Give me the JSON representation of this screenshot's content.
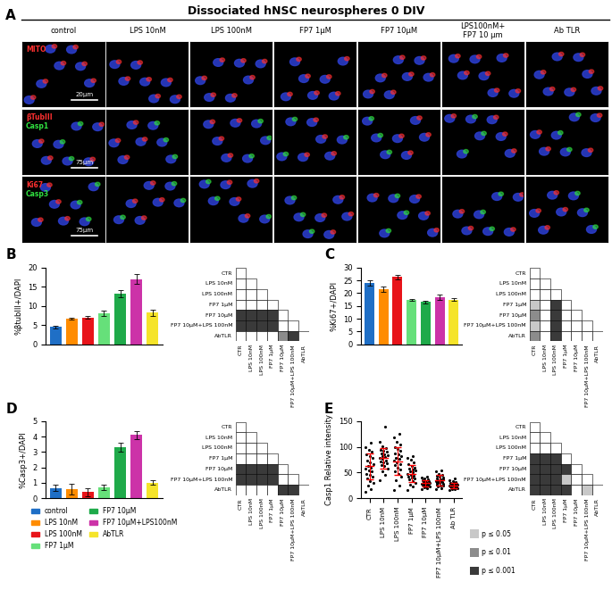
{
  "title": "Dissociated hNSC neurospheres 0 DIV",
  "panel_A": {
    "label": "A",
    "columns": [
      "control",
      "LPS 10nM",
      "LPS 100nM",
      "FP7 1µM",
      "FP7 10µM",
      "LPS100nM+\nFP7 10 µm",
      "Ab TLR"
    ],
    "rows": [
      {
        "stains": [
          {
            "text": "MITO",
            "color": "#ff3030"
          }
        ],
        "scale_bar": "20µm"
      },
      {
        "stains": [
          {
            "text": "βTubIII",
            "color": "#ff3030"
          },
          {
            "text": "Casp1",
            "color": "#30e040"
          }
        ],
        "scale_bar": "75µm"
      },
      {
        "stains": [
          {
            "text": "Ki67",
            "color": "#ff3030"
          },
          {
            "text": "Casp3",
            "color": "#30e040"
          }
        ],
        "scale_bar": "75µm"
      }
    ]
  },
  "significance_legend": [
    {
      "level": 1,
      "label": "p ≤ 0.05",
      "color": "#c8c8c8"
    },
    {
      "level": 2,
      "label": "p ≤ 0.01",
      "color": "#8c8c8c"
    },
    {
      "level": 3,
      "label": "p ≤ 0.001",
      "color": "#3a3a3a"
    }
  ],
  "chart_data": [
    {
      "type": "bar",
      "title": "B",
      "ylabel": "%βtubIII+/DAPI",
      "values": [
        4.5,
        6.7,
        7.0,
        8.0,
        13.2,
        17.0,
        8.3
      ],
      "errors": [
        0.4,
        0.3,
        0.3,
        0.7,
        1.0,
        1.3,
        0.8
      ],
      "colors": [
        "#1f6fc6",
        "#ff8c00",
        "#e8141a",
        "#66e07a",
        "#1faa4a",
        "#cc33a8",
        "#f5e42a"
      ],
      "ylim": [
        0,
        20
      ],
      "yticks": [
        0,
        5,
        10,
        15,
        20
      ],
      "tick_labels": "y",
      "significance": {
        "rows": [
          "CTR",
          "LPS 10nM",
          "LPS 100nM",
          "FP7 1µM",
          "FP7 10µM",
          "FP7 10µM+LPS 100nM",
          "AbTLR"
        ],
        "columns": [
          "CTR",
          "LPS 10nM",
          "LPS 100nM",
          "FP7 1µM",
          "FP7 10µM",
          "FP7 10µM+LPS 100nM",
          "AbTLR"
        ],
        "cells": [
          [
            0
          ],
          [
            0,
            0
          ],
          [
            0,
            0,
            0
          ],
          [
            0,
            0,
            0,
            0
          ],
          [
            3,
            3,
            3,
            3,
            0
          ],
          [
            3,
            3,
            3,
            3,
            0,
            0
          ],
          [
            0,
            0,
            0,
            0,
            2,
            3,
            0
          ]
        ]
      }
    },
    {
      "type": "bar",
      "title": "C",
      "ylabel": "%Ki67+/DAPI",
      "values": [
        24.0,
        21.5,
        26.3,
        17.3,
        16.5,
        18.4,
        17.4
      ],
      "errors": [
        1.0,
        1.0,
        0.8,
        0.4,
        0.4,
        1.0,
        0.5
      ],
      "colors": [
        "#1f6fc6",
        "#ff8c00",
        "#e8141a",
        "#66e07a",
        "#1faa4a",
        "#cc33a8",
        "#f5e42a"
      ],
      "ylim": [
        0,
        30
      ],
      "yticks": [
        0,
        5,
        10,
        15,
        20,
        25,
        30
      ],
      "tick_labels": "y",
      "significance": {
        "rows": [
          "CTR",
          "LPS 10nM",
          "LPS 100nM",
          "FP7 1µM",
          "FP7 10µM",
          "FP7 10µM+LPS 100nM",
          "AbTLR"
        ],
        "columns": [
          "CTR",
          "LPS 10nM",
          "LPS 100nM",
          "FP7 1µM",
          "FP7 10µM",
          "FP7 10µM+LPS 100nM",
          "AbTLR"
        ],
        "cells": [
          [
            0
          ],
          [
            0,
            0
          ],
          [
            0,
            0,
            0
          ],
          [
            1,
            0,
            3,
            0
          ],
          [
            2,
            0,
            3,
            0,
            0
          ],
          [
            1,
            0,
            3,
            0,
            0,
            0
          ],
          [
            2,
            0,
            3,
            0,
            0,
            0,
            0
          ]
        ]
      }
    },
    {
      "type": "bar",
      "title": "D",
      "ylabel": "%Casp3+/DAPI",
      "categories": [
        "control",
        "LPS 10nM",
        "LPS 100nM",
        "FP7 1µM",
        "FP7 10µM",
        "FP7 10µM+LPS100nM",
        "AbTLR"
      ],
      "values": [
        0.65,
        0.6,
        0.4,
        0.7,
        3.3,
        4.1,
        1.0
      ],
      "errors": [
        0.2,
        0.35,
        0.25,
        0.15,
        0.3,
        0.25,
        0.15
      ],
      "colors": [
        "#1f6fc6",
        "#ff8c00",
        "#e8141a",
        "#66e07a",
        "#1faa4a",
        "#cc33a8",
        "#f5e42a"
      ],
      "ylim": [
        0,
        5
      ],
      "yticks": [
        0,
        1,
        2,
        3,
        4,
        5
      ],
      "tick_labels": "y",
      "legend": "below",
      "significance": {
        "rows": [
          "CTR",
          "LPS 10nM",
          "LPS 100nM",
          "FP7 1µM",
          "FP7 10µM",
          "FP7 10µM+LPS 100nM",
          "AbTLR"
        ],
        "columns": [
          "CTR",
          "LPS 10nM",
          "LPS 100nM",
          "FP7 1µM",
          "FP7 10µM",
          "FP7 10µM+LPS 100nM",
          "AbTLR"
        ],
        "cells": [
          [
            0
          ],
          [
            0,
            0
          ],
          [
            0,
            0,
            0
          ],
          [
            0,
            0,
            0,
            0
          ],
          [
            3,
            3,
            3,
            3,
            0
          ],
          [
            3,
            3,
            3,
            3,
            0,
            0
          ],
          [
            0,
            0,
            0,
            0,
            3,
            3,
            0
          ]
        ]
      }
    },
    {
      "type": "scatter",
      "title": "E",
      "ylabel": "Casp1 Relative intensity",
      "categories": [
        "CTR",
        "LPS 10nM",
        "LPS 100nM",
        "FP7 1µM",
        "FP7 10µM",
        "FP7 10µM+LPS 100nM",
        "Ab TLR"
      ],
      "color": "#000000",
      "points": [
        [
          12,
          18,
          25,
          30,
          34,
          38,
          42,
          45,
          48,
          52,
          55,
          58,
          60,
          63,
          66,
          70,
          74,
          78,
          82,
          86,
          90,
          95,
          100,
          108
        ],
        [
          35,
          45,
          52,
          58,
          62,
          65,
          68,
          70,
          72,
          74,
          76,
          78,
          80,
          82,
          84,
          86,
          88,
          90,
          92,
          95,
          98,
          102,
          110,
          140
        ],
        [
          15,
          25,
          35,
          42,
          48,
          52,
          56,
          60,
          64,
          67,
          70,
          73,
          76,
          79,
          82,
          85,
          88,
          92,
          96,
          100,
          105,
          110,
          118,
          125
        ],
        [
          15,
          22,
          27,
          30,
          33,
          36,
          38,
          40,
          42,
          44,
          46,
          48,
          50,
          52,
          54,
          56,
          58,
          60,
          63,
          66,
          70,
          75,
          78,
          82
        ],
        [
          18,
          20,
          21,
          22,
          23,
          24,
          25,
          26,
          26,
          27,
          28,
          28,
          29,
          30,
          30,
          31,
          32,
          33,
          34,
          35,
          36,
          38,
          40,
          42
        ],
        [
          18,
          20,
          22,
          24,
          25,
          27,
          28,
          29,
          30,
          31,
          32,
          33,
          34,
          35,
          36,
          37,
          38,
          40,
          42,
          44,
          46,
          48,
          52,
          55
        ],
        [
          15,
          17,
          18,
          19,
          20,
          21,
          22,
          22,
          23,
          24,
          24,
          25,
          25,
          26,
          26,
          27,
          28,
          28,
          29,
          30,
          31,
          33,
          35,
          38
        ]
      ],
      "mean": [
        62,
        78,
        72,
        48,
        29,
        35,
        25
      ],
      "sd": [
        25,
        20,
        27,
        17,
        6,
        10,
        5
      ],
      "ylim": [
        0,
        150
      ],
      "yticks": [
        0,
        50,
        100,
        150
      ],
      "significance": {
        "rows": [
          "CTR",
          "LPS 10nM",
          "LPS 100nM",
          "FP7 1µM",
          "FP7 10µM",
          "FP7 10µM+LPS 100nM",
          "AbTLR"
        ],
        "columns": [
          "CTR",
          "LPS 10nM",
          "LPS 100nM",
          "FP7 1µM",
          "FP7 10µM",
          "FP7 10µM+LPS 100nM",
          "AbTLR"
        ],
        "cells": [
          [
            0
          ],
          [
            0,
            0
          ],
          [
            0,
            0,
            0
          ],
          [
            3,
            3,
            3,
            0
          ],
          [
            3,
            3,
            3,
            3,
            0
          ],
          [
            3,
            3,
            3,
            1,
            0,
            0
          ],
          [
            3,
            3,
            3,
            3,
            0,
            1,
            0
          ]
        ]
      }
    }
  ]
}
